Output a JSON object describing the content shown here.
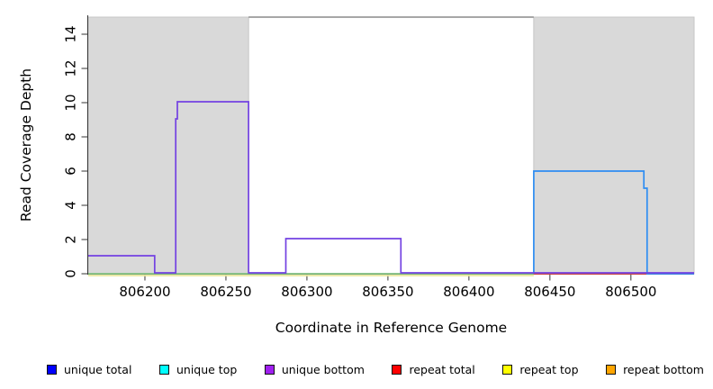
{
  "chart_data": {
    "type": "line",
    "title": "",
    "xlabel": "Coordinate in Reference Genome",
    "ylabel": "Read Coverage Depth",
    "xlim": [
      806165,
      806539
    ],
    "ylim": [
      0,
      15
    ],
    "x_ticks": [
      806200,
      806250,
      806300,
      806350,
      806400,
      806450,
      806500
    ],
    "y_ticks": [
      0,
      2,
      4,
      6,
      8,
      10,
      12,
      14
    ],
    "grid": "off",
    "shade_color": "#d9d9d9",
    "shaded_regions": [
      {
        "x_from": 806165,
        "x_to": 806264
      },
      {
        "x_from": 806440,
        "x_to": 806539
      }
    ],
    "top_boundary_line": {
      "y": 15,
      "x_from": 806264,
      "x_to": 806440,
      "color": "#8a8a8a"
    },
    "series": [
      {
        "name": "repeat top",
        "color": "#eae79c",
        "dy": 2,
        "points": [
          [
            806165,
            0
          ],
          [
            806440,
            0
          ]
        ]
      },
      {
        "name": "unique top",
        "color": "#82c382",
        "dy": 0,
        "points": [
          [
            806165,
            0
          ],
          [
            806440,
            0
          ]
        ]
      },
      {
        "name": "repeat total",
        "color": "#dc4848",
        "dy": 0,
        "points": [
          [
            806440,
            0
          ],
          [
            806539,
            0
          ]
        ]
      },
      {
        "name": "unique total",
        "color": "#2e8df2",
        "dy": 0,
        "points": [
          [
            806440,
            0
          ],
          [
            806440,
            6
          ],
          [
            806508,
            6
          ],
          [
            806508,
            5
          ],
          [
            806510,
            5
          ],
          [
            806510,
            0
          ],
          [
            806539,
            0
          ]
        ]
      },
      {
        "name": "unique bottom",
        "color": "#7342e2",
        "dy": -1,
        "points": [
          [
            806165,
            1
          ],
          [
            806206,
            1
          ],
          [
            806206,
            0
          ],
          [
            806219,
            0
          ],
          [
            806219,
            9
          ],
          [
            806220,
            9
          ],
          [
            806220,
            10
          ],
          [
            806264,
            10
          ],
          [
            806264,
            0
          ],
          [
            806287,
            0
          ],
          [
            806287,
            2
          ],
          [
            806358,
            2
          ],
          [
            806358,
            0
          ],
          [
            806539,
            0
          ]
        ]
      }
    ]
  },
  "legend": {
    "items": [
      {
        "label": "unique total",
        "color": "#0000ff"
      },
      {
        "label": "unique top",
        "color": "#00ffff"
      },
      {
        "label": "unique bottom",
        "color": "#a020f0"
      },
      {
        "label": "repeat total",
        "color": "#ff0000"
      },
      {
        "label": "repeat top",
        "color": "#ffff00"
      },
      {
        "label": "repeat bottom",
        "color": "#ffa500"
      }
    ]
  }
}
